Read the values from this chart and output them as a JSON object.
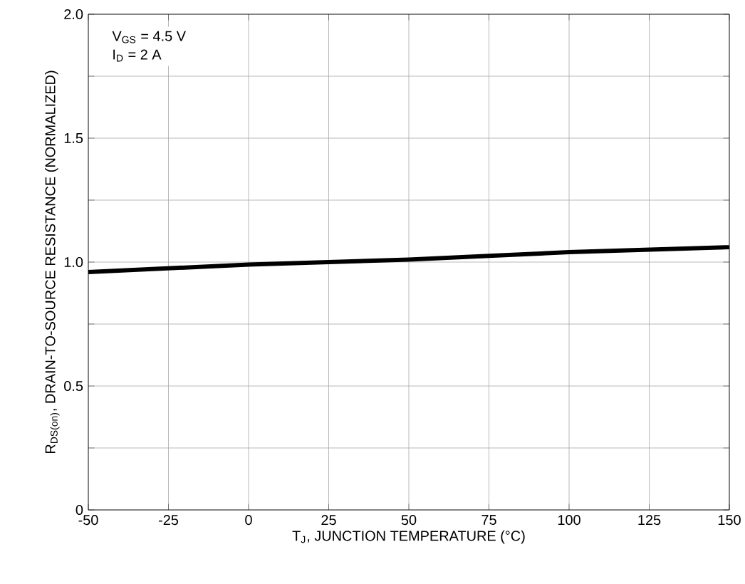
{
  "chart_data": {
    "type": "line",
    "xlabel": "T$_{J}$, JUNCTION TEMPERATURE (°C)",
    "ylabel": "R$_{DS(on)}$, DRAIN-TO-SOURCE RESISTANCE (NORMALIZED)",
    "x": [
      -50,
      -25,
      0,
      25,
      50,
      75,
      100,
      125,
      150
    ],
    "values": [
      0.96,
      0.975,
      0.99,
      1.0,
      1.01,
      1.025,
      1.04,
      1.05,
      1.06
    ],
    "color": "#000000",
    "xlim": [
      -50,
      150
    ],
    "xticks": [
      -50,
      -25,
      0,
      25,
      50,
      75,
      100,
      125,
      150
    ],
    "ylim": [
      0,
      2
    ],
    "yticks": [
      0,
      {
        "value": 0.25,
        "label": null
      },
      0.5,
      {
        "value": 0.75,
        "label": null
      },
      {
        "value": 1,
        "label": "1.0"
      },
      {
        "value": 1.25,
        "label": null
      },
      1.5,
      {
        "value": 1.75,
        "label": null
      },
      {
        "value": 2,
        "label": "2.0"
      }
    ],
    "grid": true,
    "annotations": [
      "V$_{GS}$ = 4.5 V",
      "I$_{D}$ = 2 A"
    ]
  }
}
